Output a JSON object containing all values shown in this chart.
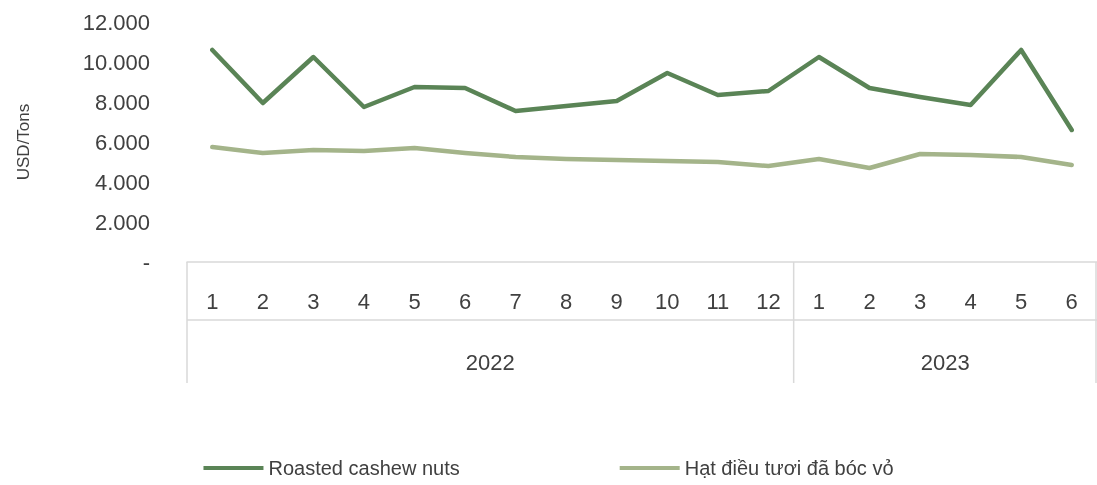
{
  "chart_data": {
    "type": "line",
    "ylabel": "USD/Tons",
    "categories": [
      "1",
      "2",
      "3",
      "4",
      "5",
      "6",
      "7",
      "8",
      "9",
      "10",
      "11",
      "12",
      "1",
      "2",
      "3",
      "4",
      "5",
      "6"
    ],
    "annotations": [
      "2022",
      "2023"
    ],
    "series": [
      {
        "name": "Roasted cashew nuts",
        "color": "#5a8456",
        "values": [
          10600,
          7950,
          10250,
          7750,
          8750,
          8700,
          7550,
          7800,
          8050,
          9450,
          8350,
          8550,
          10250,
          8700,
          8250,
          7850,
          10600,
          6600
        ]
      },
      {
        "name": "Hạt điều tươi đã bóc vỏ",
        "color": "#a4b48a",
        "values": [
          5750,
          5450,
          5600,
          5550,
          5700,
          5450,
          5250,
          5150,
          5100,
          5050,
          5000,
          4800,
          5150,
          4700,
          5400,
          5350,
          5250,
          4850
        ]
      }
    ],
    "ylim": [
      0,
      12000
    ],
    "yticks": [
      {
        "value": 0,
        "label": "-"
      },
      {
        "value": 2000,
        "label": "2.000"
      },
      {
        "value": 4000,
        "label": "4.000"
      },
      {
        "value": 6000,
        "label": "6.000"
      },
      {
        "value": 8000,
        "label": "8.000"
      },
      {
        "value": 10000,
        "label": "10.000"
      },
      {
        "value": 12000,
        "label": "12.000"
      }
    ],
    "grid": false,
    "legend": "bottom",
    "marker": "none",
    "line_style": "solid"
  }
}
